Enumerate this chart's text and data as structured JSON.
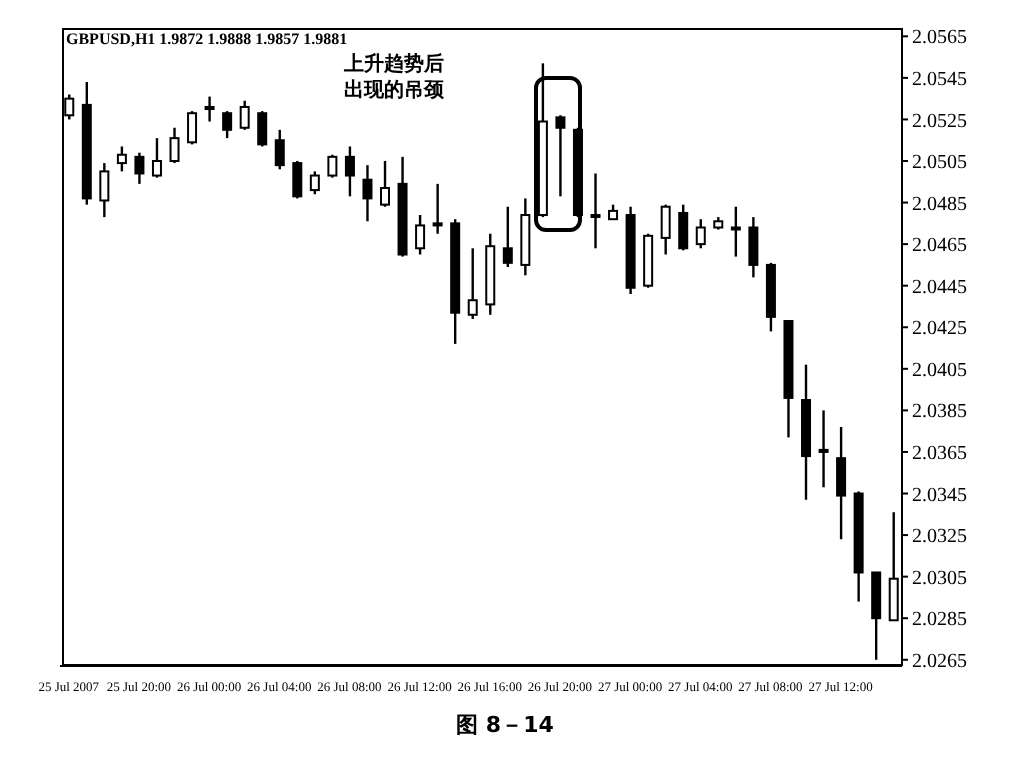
{
  "chart_data": {
    "type": "candlestick",
    "title": "GBPUSD,H1 1.9872 1.9888 1.9857 1.9881",
    "annotations": [
      "上升趋势后出现的吊颈",
      "图 8－14"
    ],
    "categories": [
      "25 Jul 2007",
      null,
      null,
      null,
      "25 Jul 20:00",
      null,
      null,
      null,
      "26 Jul 00:00",
      null,
      null,
      null,
      "26 Jul 04:00",
      null,
      null,
      null,
      "26 Jul 08:00",
      null,
      null,
      null,
      "26 Jul 12:00",
      null,
      null,
      null,
      "26 Jul 16:00",
      null,
      null,
      null,
      "26 Jul 20:00",
      null,
      null,
      null,
      "27 Jul 00:00",
      null,
      null,
      null,
      "27 Jul 04:00",
      null,
      null,
      null,
      "27 Jul 08:00",
      null,
      null,
      null,
      "27 Jul 12:00",
      null,
      null,
      null
    ],
    "ohlc": [
      [
        2.0527,
        2.0537,
        2.0525,
        2.0535
      ],
      [
        2.0532,
        2.0543,
        2.0484,
        2.0487
      ],
      [
        2.0486,
        2.0504,
        2.0478,
        2.05
      ],
      [
        2.0504,
        2.0512,
        2.05,
        2.0508
      ],
      [
        2.0507,
        2.0509,
        2.0494,
        2.0499
      ],
      [
        2.0498,
        2.0516,
        2.0497,
        2.0505
      ],
      [
        2.0505,
        2.0521,
        2.0504,
        2.0516
      ],
      [
        2.0514,
        2.0529,
        2.0513,
        2.0528
      ],
      [
        2.053,
        2.0536,
        2.0524,
        2.0531
      ],
      [
        2.0528,
        2.0529,
        2.0516,
        2.052
      ],
      [
        2.0521,
        2.0534,
        2.052,
        2.0531
      ],
      [
        2.0528,
        2.0529,
        2.0512,
        2.0513
      ],
      [
        2.0515,
        2.052,
        2.0501,
        2.0503
      ],
      [
        2.0504,
        2.0505,
        2.0487,
        2.0488
      ],
      [
        2.0491,
        2.05,
        2.0489,
        2.0498
      ],
      [
        2.0498,
        2.0508,
        2.0497,
        2.0507
      ],
      [
        2.0507,
        2.0512,
        2.0488,
        2.0498
      ],
      [
        2.0496,
        2.0503,
        2.0476,
        2.0487
      ],
      [
        2.0484,
        2.0505,
        2.0483,
        2.0492
      ],
      [
        2.0494,
        2.0507,
        2.0459,
        2.046
      ],
      [
        2.0463,
        2.0479,
        2.046,
        2.0474
      ],
      [
        2.0475,
        2.0494,
        2.047,
        2.0474
      ],
      [
        2.0475,
        2.0477,
        2.0417,
        2.0432
      ],
      [
        2.0431,
        2.0463,
        2.0429,
        2.0438
      ],
      [
        2.0436,
        2.047,
        2.0431,
        2.0464
      ],
      [
        2.0463,
        2.0483,
        2.0454,
        2.0456
      ],
      [
        2.0455,
        2.0487,
        2.045,
        2.0479
      ],
      [
        2.0479,
        2.0552,
        2.0478,
        2.0524
      ],
      [
        2.0526,
        2.0527,
        2.0488,
        2.0521
      ],
      [
        2.052,
        2.0521,
        2.0478,
        2.0479
      ],
      [
        2.0479,
        2.0499,
        2.0463,
        2.0479
      ],
      [
        2.0477,
        2.0484,
        2.0477,
        2.0481
      ],
      [
        2.0479,
        2.0483,
        2.0441,
        2.0444
      ],
      [
        2.0445,
        2.047,
        2.0444,
        2.0469
      ],
      [
        2.0468,
        2.0484,
        2.046,
        2.0483
      ],
      [
        2.048,
        2.0484,
        2.0462,
        2.0463
      ],
      [
        2.0465,
        2.0477,
        2.0463,
        2.0473
      ],
      [
        2.0473,
        2.0478,
        2.0472,
        2.0476
      ],
      [
        2.0473,
        2.0483,
        2.0459,
        2.0473
      ],
      [
        2.0473,
        2.0478,
        2.0449,
        2.0455
      ],
      [
        2.0455,
        2.0456,
        2.0423,
        2.043
      ],
      [
        2.0428,
        2.0428,
        2.0372,
        2.0391
      ],
      [
        2.039,
        2.0407,
        2.0342,
        2.0363
      ],
      [
        2.0366,
        2.0385,
        2.0348,
        2.0365
      ],
      [
        2.0362,
        2.0377,
        2.0323,
        2.0344
      ],
      [
        2.0345,
        2.0346,
        2.0293,
        2.0307
      ],
      [
        2.0307,
        2.0307,
        2.0265,
        2.0285
      ],
      [
        2.0284,
        2.0336,
        2.0284,
        2.0304
      ]
    ],
    "ylim": [
      2.0262,
      2.0569
    ],
    "yticks": [
      2.0565,
      2.0545,
      2.0525,
      2.0505,
      2.0485,
      2.0465,
      2.0445,
      2.0425,
      2.0405,
      2.0385,
      2.0365,
      2.0345,
      2.0325,
      2.0305,
      2.0285,
      2.0265
    ]
  }
}
